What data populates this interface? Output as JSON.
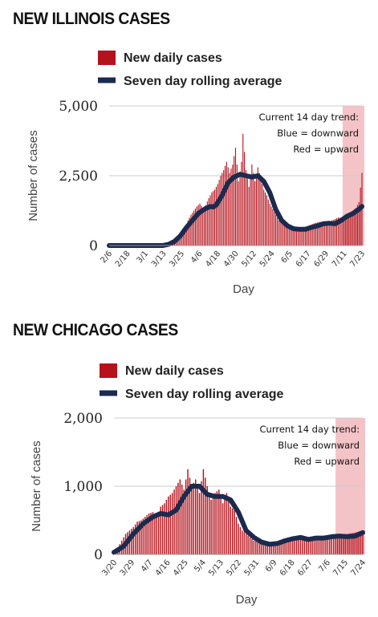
{
  "colors": {
    "bar": "#b5121b",
    "line": "#1b2a4e",
    "trend_band": "#f2b8bd",
    "grid": "#cccccc"
  },
  "chart_data": [
    {
      "type": "bar",
      "title": "NEW ILLINOIS CASES",
      "legend": [
        {
          "label": "New daily cases",
          "swatch": "bar"
        },
        {
          "label": "Seven day rolling average",
          "swatch": "line"
        }
      ],
      "annotation": [
        "Current 14 day trend:",
        "Blue = downward",
        "Red = upward"
      ],
      "xlabel": "Day",
      "ylabel": "Number of cases",
      "ylim": [
        0,
        5000
      ],
      "yticks": [
        0,
        2500,
        5000
      ],
      "ytick_labels": [
        "0",
        "2,500",
        "5,000"
      ],
      "x_start": "2/6",
      "days": 171,
      "xtick_labels": [
        "2/6",
        "2/18",
        "3/1",
        "3/13",
        "3/25",
        "4/6",
        "4/18",
        "4/30",
        "5/12",
        "5/24",
        "6/5",
        "6/17",
        "6/29",
        "7/11",
        "7/23"
      ],
      "trend_band_from_day": 157,
      "series": [
        {
          "name": "New daily cases",
          "kind": "bar",
          "points": [
            [
              0,
              0
            ],
            [
              36,
              0
            ],
            [
              42,
              80
            ],
            [
              45,
              120
            ],
            [
              47,
              300
            ],
            [
              49,
              450
            ],
            [
              51,
              600
            ],
            [
              53,
              900
            ],
            [
              55,
              1100
            ],
            [
              57,
              1250
            ],
            [
              59,
              1400
            ],
            [
              61,
              1500
            ],
            [
              63,
              1350
            ],
            [
              65,
              1450
            ],
            [
              67,
              1700
            ],
            [
              69,
              1900
            ],
            [
              71,
              2000
            ],
            [
              73,
              2200
            ],
            [
              75,
              2500
            ],
            [
              77,
              2700
            ],
            [
              79,
              3000
            ],
            [
              81,
              2600
            ],
            [
              83,
              2900
            ],
            [
              85,
              3500
            ],
            [
              87,
              2300
            ],
            [
              89,
              3000
            ],
            [
              90,
              4000
            ],
            [
              92,
              2700
            ],
            [
              94,
              2100
            ],
            [
              96,
              2900
            ],
            [
              98,
              2300
            ],
            [
              100,
              2800
            ],
            [
              102,
              2400
            ],
            [
              104,
              2000
            ],
            [
              106,
              1800
            ],
            [
              108,
              1500
            ],
            [
              110,
              1300
            ],
            [
              112,
              1100
            ],
            [
              114,
              900
            ],
            [
              116,
              800
            ],
            [
              118,
              750
            ],
            [
              122,
              700
            ],
            [
              126,
              650
            ],
            [
              130,
              650
            ],
            [
              134,
              700
            ],
            [
              138,
              800
            ],
            [
              142,
              850
            ],
            [
              146,
              800
            ],
            [
              150,
              900
            ],
            [
              154,
              1000
            ],
            [
              157,
              1000
            ],
            [
              160,
              1100
            ],
            [
              163,
              1200
            ],
            [
              166,
              1350
            ],
            [
              168,
              1550
            ],
            [
              170,
              2600
            ]
          ]
        },
        {
          "name": "Seven day rolling average",
          "kind": "line",
          "points": [
            [
              0,
              0
            ],
            [
              36,
              0
            ],
            [
              40,
              40
            ],
            [
              44,
              150
            ],
            [
              48,
              350
            ],
            [
              52,
              650
            ],
            [
              56,
              900
            ],
            [
              60,
              1150
            ],
            [
              64,
              1300
            ],
            [
              68,
              1400
            ],
            [
              70,
              1380
            ],
            [
              72,
              1450
            ],
            [
              76,
              1800
            ],
            [
              80,
              2250
            ],
            [
              84,
              2450
            ],
            [
              88,
              2550
            ],
            [
              92,
              2500
            ],
            [
              96,
              2450
            ],
            [
              100,
              2500
            ],
            [
              104,
              2300
            ],
            [
              108,
              1900
            ],
            [
              112,
              1300
            ],
            [
              116,
              900
            ],
            [
              120,
              700
            ],
            [
              124,
              600
            ],
            [
              128,
              580
            ],
            [
              132,
              580
            ],
            [
              136,
              650
            ],
            [
              140,
              700
            ],
            [
              144,
              780
            ],
            [
              148,
              800
            ],
            [
              152,
              780
            ],
            [
              156,
              900
            ],
            [
              160,
              1050
            ],
            [
              164,
              1150
            ],
            [
              168,
              1300
            ],
            [
              170,
              1400
            ]
          ]
        }
      ]
    },
    {
      "type": "bar",
      "title": "NEW CHICAGO CASES",
      "legend": [
        {
          "label": "New daily cases",
          "swatch": "bar"
        },
        {
          "label": "Seven day rolling average",
          "swatch": "line"
        }
      ],
      "annotation": [
        "Current 14 day trend:",
        "Blue = downward",
        "Red = upward"
      ],
      "xlabel": "Day",
      "ylabel": "Number of cases",
      "ylim": [
        0,
        2000
      ],
      "yticks": [
        0,
        1000,
        2000
      ],
      "ytick_labels": [
        "0",
        "1,000",
        "2,000"
      ],
      "x_start": "3/20",
      "days": 129,
      "xtick_labels": [
        "3/20",
        "3/29",
        "4/7",
        "4/16",
        "4/25",
        "5/4",
        "5/13",
        "5/22",
        "5/31",
        "6/9",
        "6/18",
        "6/27",
        "7/6",
        "7/15",
        "7/24"
      ],
      "trend_band_from_day": 114,
      "series": [
        {
          "name": "New daily cases",
          "kind": "bar",
          "points": [
            [
              0,
              40
            ],
            [
              2,
              100
            ],
            [
              4,
              200
            ],
            [
              6,
              300
            ],
            [
              8,
              350
            ],
            [
              10,
              400
            ],
            [
              12,
              480
            ],
            [
              14,
              500
            ],
            [
              16,
              550
            ],
            [
              18,
              600
            ],
            [
              20,
              620
            ],
            [
              22,
              550
            ],
            [
              24,
              700
            ],
            [
              26,
              750
            ],
            [
              28,
              850
            ],
            [
              30,
              900
            ],
            [
              32,
              1000
            ],
            [
              34,
              1100
            ],
            [
              36,
              950
            ],
            [
              38,
              1250
            ],
            [
              40,
              1000
            ],
            [
              42,
              1100
            ],
            [
              44,
              900
            ],
            [
              46,
              1250
            ],
            [
              48,
              1000
            ],
            [
              50,
              800
            ],
            [
              52,
              900
            ],
            [
              54,
              950
            ],
            [
              56,
              750
            ],
            [
              58,
              900
            ],
            [
              60,
              700
            ],
            [
              62,
              650
            ],
            [
              64,
              450
            ],
            [
              66,
              350
            ],
            [
              68,
              300
            ],
            [
              70,
              250
            ],
            [
              72,
              200
            ],
            [
              76,
              180
            ],
            [
              80,
              170
            ],
            [
              84,
              180
            ],
            [
              88,
              200
            ],
            [
              92,
              220
            ],
            [
              96,
              240
            ],
            [
              100,
              230
            ],
            [
              104,
              250
            ],
            [
              108,
              260
            ],
            [
              112,
              280
            ],
            [
              116,
              300
            ],
            [
              120,
              300
            ],
            [
              124,
              320
            ],
            [
              128,
              350
            ]
          ]
        },
        {
          "name": "Seven day rolling average",
          "kind": "line",
          "points": [
            [
              0,
              30
            ],
            [
              5,
              120
            ],
            [
              10,
              300
            ],
            [
              15,
              450
            ],
            [
              20,
              550
            ],
            [
              24,
              600
            ],
            [
              28,
              580
            ],
            [
              32,
              650
            ],
            [
              36,
              850
            ],
            [
              40,
              1000
            ],
            [
              44,
              1000
            ],
            [
              48,
              880
            ],
            [
              52,
              850
            ],
            [
              56,
              850
            ],
            [
              60,
              800
            ],
            [
              64,
              620
            ],
            [
              68,
              350
            ],
            [
              72,
              250
            ],
            [
              76,
              180
            ],
            [
              80,
              150
            ],
            [
              84,
              160
            ],
            [
              88,
              200
            ],
            [
              92,
              230
            ],
            [
              96,
              250
            ],
            [
              100,
              220
            ],
            [
              104,
              240
            ],
            [
              108,
              240
            ],
            [
              112,
              260
            ],
            [
              116,
              270
            ],
            [
              120,
              260
            ],
            [
              124,
              270
            ],
            [
              128,
              320
            ]
          ]
        }
      ]
    }
  ]
}
